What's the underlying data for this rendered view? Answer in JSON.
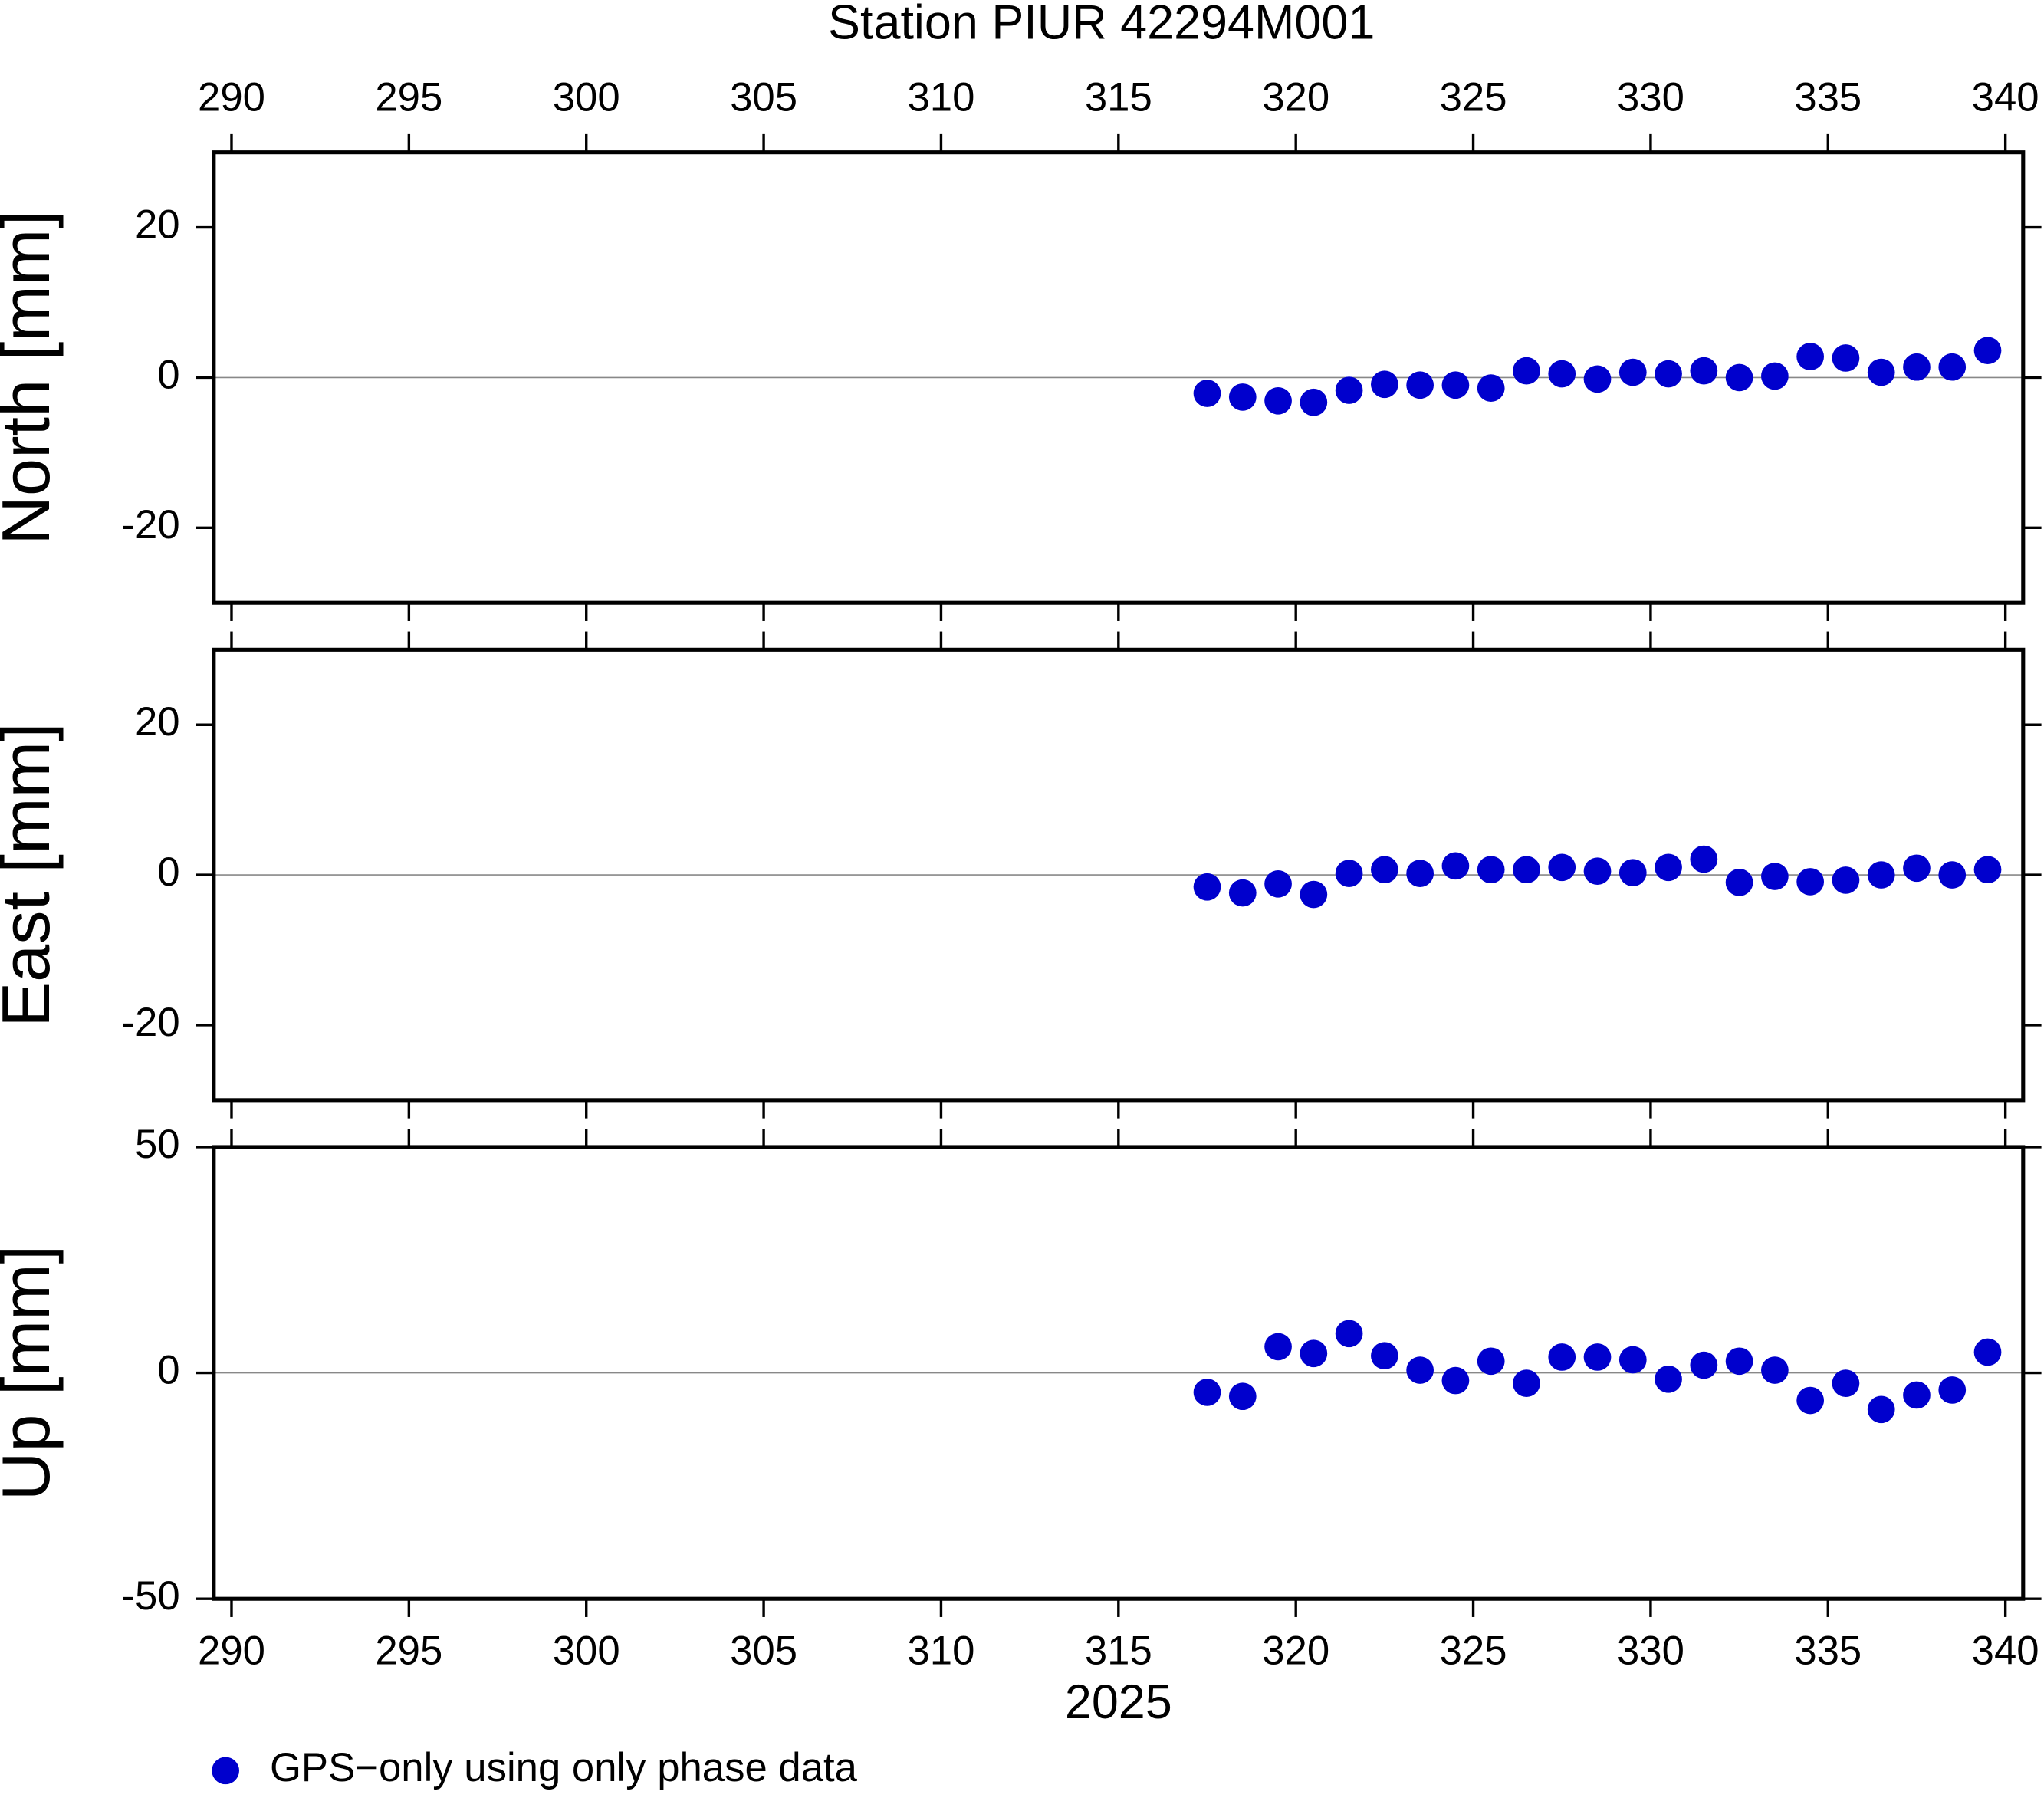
{
  "chart_data": [
    {
      "type": "scatter",
      "title": "Station PIUR 42294M001",
      "ylabel": "North [mm]",
      "xlim": [
        289.5,
        340.5
      ],
      "xticks": [
        290,
        295,
        300,
        305,
        310,
        315,
        320,
        325,
        330,
        335,
        340
      ],
      "ylim": [
        -30,
        30
      ],
      "yticks": [
        -20,
        0,
        20
      ],
      "series": [
        {
          "color": "#0000cd",
          "x": [
            317.5,
            318.5,
            319.5,
            320.5,
            321.5,
            322.5,
            323.5,
            324.5,
            325.5,
            326.5,
            327.5,
            328.5,
            329.5,
            330.5,
            331.5,
            332.5,
            333.5,
            334.5,
            335.5,
            336.5,
            337.5,
            338.5,
            339.5
          ],
          "values": [
            -2.1,
            -2.6,
            -3.1,
            -3.3,
            -1.7,
            -0.9,
            -1.0,
            -1.0,
            -1.4,
            0.9,
            0.5,
            -0.2,
            0.7,
            0.5,
            0.9,
            0,
            0.2,
            2.8,
            2.6,
            0.7,
            1.4,
            1.4,
            3.6
          ]
        }
      ]
    },
    {
      "type": "scatter",
      "ylabel": "East [mm]",
      "xlim": [
        289.5,
        340.5
      ],
      "xticks": [
        290,
        295,
        300,
        305,
        310,
        315,
        320,
        325,
        330,
        335,
        340
      ],
      "ylim": [
        -30,
        30
      ],
      "yticks": [
        -20,
        0,
        20
      ],
      "series": [
        {
          "color": "#0000cd",
          "x": [
            317.5,
            318.5,
            319.5,
            320.5,
            321.5,
            322.5,
            323.5,
            324.5,
            325.5,
            326.5,
            327.5,
            328.5,
            329.5,
            330.5,
            331.5,
            332.5,
            333.5,
            334.5,
            335.5,
            336.5,
            337.5,
            338.5,
            339.5
          ],
          "values": [
            -1.6,
            -2.4,
            -1.2,
            -2.6,
            0.2,
            0.7,
            0.2,
            1.2,
            0.7,
            0.7,
            1.0,
            0.5,
            0.3,
            1.0,
            2.1,
            -1.0,
            -0.2,
            -0.9,
            -0.7,
            0,
            0.9,
            0,
            0.7
          ]
        }
      ]
    },
    {
      "type": "scatter",
      "ylabel": "Up [mm]",
      "xlabel": "2025",
      "xlim": [
        289.5,
        340.5
      ],
      "xticks": [
        290,
        295,
        300,
        305,
        310,
        315,
        320,
        325,
        330,
        335,
        340
      ],
      "ylim": [
        -50,
        50
      ],
      "yticks": [
        -50,
        0,
        50
      ],
      "series": [
        {
          "name": "GPS−only using only phase data",
          "color": "#0000cd",
          "x": [
            317.5,
            318.5,
            319.5,
            320.5,
            321.5,
            322.5,
            323.5,
            324.5,
            325.5,
            326.5,
            327.5,
            328.5,
            329.5,
            330.5,
            331.5,
            332.5,
            333.5,
            334.5,
            335.5,
            336.5,
            337.5,
            338.5,
            339.5
          ],
          "values": [
            -4.3,
            -5.2,
            5.8,
            4.3,
            8.7,
            3.8,
            0.6,
            -1.7,
            2.6,
            -2.3,
            3.5,
            3.5,
            2.9,
            -1.4,
            1.7,
            2.6,
            0.6,
            -6.1,
            -2.3,
            -8.1,
            -4.9,
            -3.8,
            4.6
          ]
        }
      ]
    }
  ]
}
